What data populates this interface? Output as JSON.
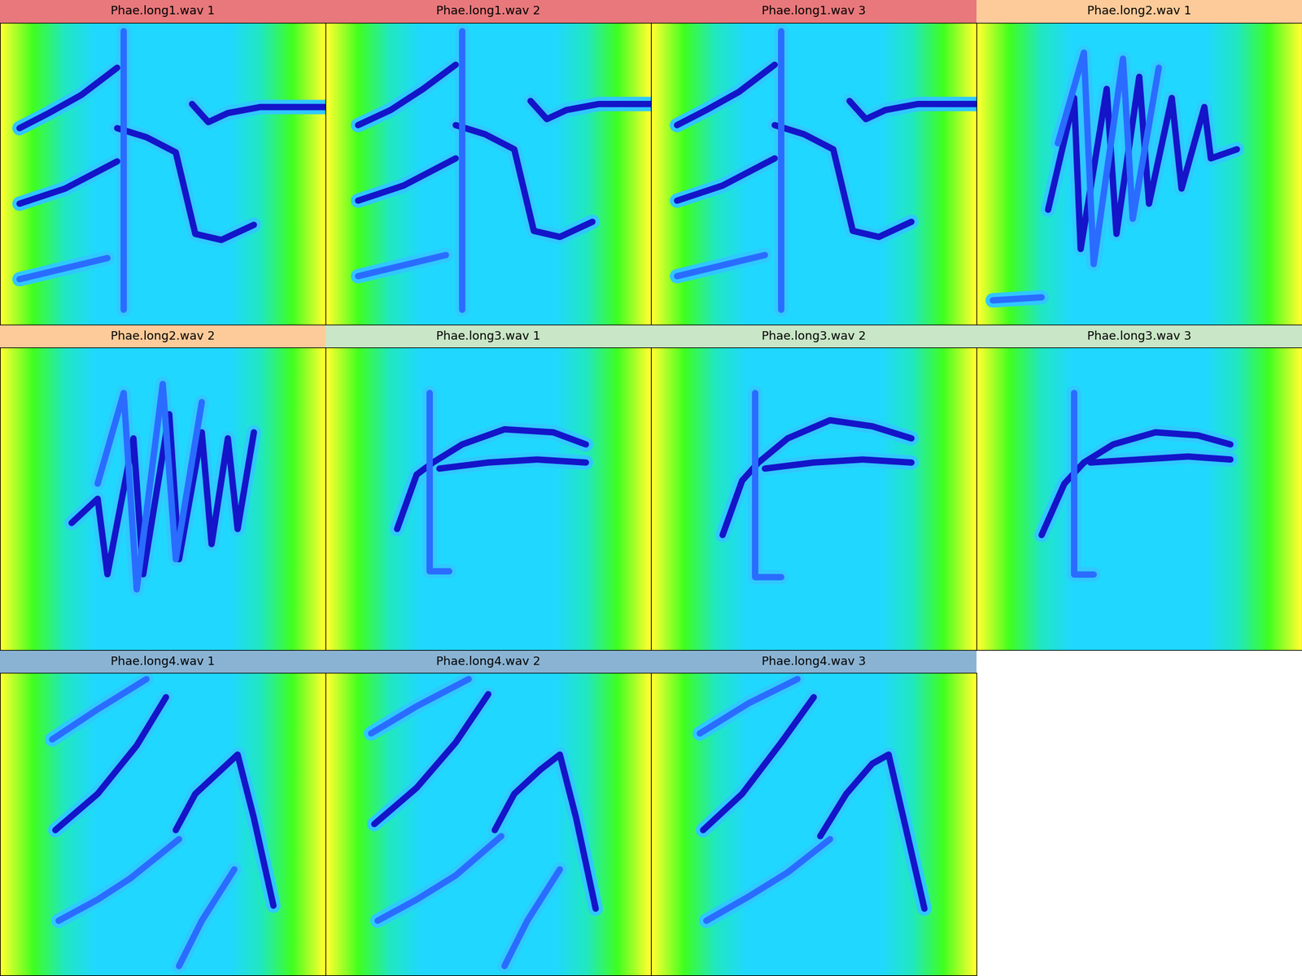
{
  "chart_data": [
    {
      "type": "line",
      "title": "Phae.long1.wav 1",
      "color": "#e8787b",
      "xlim": [
        0,
        1
      ],
      "ylim": [
        0,
        1
      ],
      "tick_labels": false,
      "series": [
        {
          "x": [
            0.06,
            0.15,
            0.25,
            0.36
          ],
          "values": [
            0.65,
            0.7,
            0.76,
            0.85
          ],
          "color": "#1414c8"
        },
        {
          "x": [
            0.06,
            0.2,
            0.36
          ],
          "values": [
            0.4,
            0.45,
            0.54
          ],
          "color": "#1414c8"
        },
        {
          "x": [
            0.06,
            0.33
          ],
          "values": [
            0.15,
            0.22
          ],
          "color": "#2a6cff"
        },
        {
          "x": [
            0.36,
            0.45,
            0.54,
            0.6,
            0.68,
            0.78
          ],
          "values": [
            0.65,
            0.62,
            0.57,
            0.3,
            0.28,
            0.33
          ],
          "color": "#1414c8"
        },
        {
          "x": [
            0.59,
            0.64,
            0.7,
            0.8,
            1.0
          ],
          "values": [
            0.73,
            0.67,
            0.7,
            0.72,
            0.72
          ],
          "color": "#1414c8"
        },
        {
          "x": [
            0.38,
            0.38
          ],
          "values": [
            0.97,
            0.05
          ],
          "color": "#2a6cff"
        }
      ]
    },
    {
      "type": "line",
      "title": "Phae.long1.wav 2",
      "color": "#e8787b",
      "xlim": [
        0,
        1
      ],
      "ylim": [
        0,
        1
      ],
      "tick_labels": false,
      "series": [
        {
          "x": [
            0.1,
            0.2,
            0.3,
            0.4
          ],
          "values": [
            0.66,
            0.71,
            0.78,
            0.86
          ],
          "color": "#1414c8"
        },
        {
          "x": [
            0.1,
            0.24,
            0.4
          ],
          "values": [
            0.41,
            0.46,
            0.55
          ],
          "color": "#1414c8"
        },
        {
          "x": [
            0.1,
            0.37
          ],
          "values": [
            0.16,
            0.23
          ],
          "color": "#2a6cff"
        },
        {
          "x": [
            0.4,
            0.49,
            0.58,
            0.64,
            0.72,
            0.82
          ],
          "values": [
            0.66,
            0.63,
            0.58,
            0.31,
            0.29,
            0.34
          ],
          "color": "#1414c8"
        },
        {
          "x": [
            0.63,
            0.68,
            0.74,
            0.84,
            1.0
          ],
          "values": [
            0.74,
            0.68,
            0.71,
            0.73,
            0.73
          ],
          "color": "#1414c8"
        },
        {
          "x": [
            0.42,
            0.42
          ],
          "values": [
            0.97,
            0.05
          ],
          "color": "#2a6cff"
        }
      ]
    },
    {
      "type": "line",
      "title": "Phae.long1.wav 3",
      "color": "#e8787b",
      "xlim": [
        0,
        1
      ],
      "ylim": [
        0,
        1
      ],
      "tick_labels": false,
      "series": [
        {
          "x": [
            0.08,
            0.17,
            0.27,
            0.38
          ],
          "values": [
            0.66,
            0.71,
            0.77,
            0.86
          ],
          "color": "#1414c8"
        },
        {
          "x": [
            0.08,
            0.22,
            0.38
          ],
          "values": [
            0.41,
            0.46,
            0.55
          ],
          "color": "#1414c8"
        },
        {
          "x": [
            0.08,
            0.35
          ],
          "values": [
            0.16,
            0.23
          ],
          "color": "#2a6cff"
        },
        {
          "x": [
            0.38,
            0.47,
            0.56,
            0.62,
            0.7,
            0.8
          ],
          "values": [
            0.66,
            0.63,
            0.58,
            0.31,
            0.29,
            0.34
          ],
          "color": "#1414c8"
        },
        {
          "x": [
            0.61,
            0.66,
            0.72,
            0.82,
            1.0
          ],
          "values": [
            0.74,
            0.68,
            0.71,
            0.73,
            0.73
          ],
          "color": "#1414c8"
        },
        {
          "x": [
            0.4,
            0.4
          ],
          "values": [
            0.97,
            0.05
          ],
          "color": "#2a6cff"
        }
      ]
    },
    {
      "type": "line",
      "title": "Phae.long2.wav 1",
      "color": "#fdcb9a",
      "xlim": [
        0,
        1
      ],
      "ylim": [
        0,
        1
      ],
      "tick_labels": false,
      "series": [
        {
          "x": [
            0.22,
            0.3,
            0.32,
            0.4,
            0.43,
            0.5,
            0.53,
            0.6,
            0.63,
            0.7,
            0.72,
            0.8
          ],
          "values": [
            0.38,
            0.75,
            0.25,
            0.78,
            0.3,
            0.82,
            0.4,
            0.75,
            0.45,
            0.72,
            0.55,
            0.58
          ],
          "color": "#1414c8"
        },
        {
          "x": [
            0.25,
            0.33,
            0.36,
            0.45,
            0.48,
            0.56
          ],
          "values": [
            0.6,
            0.9,
            0.2,
            0.88,
            0.35,
            0.85
          ],
          "color": "#2a6cff"
        },
        {
          "x": [
            0.05,
            0.2
          ],
          "values": [
            0.08,
            0.09
          ],
          "color": "#2a6cff"
        }
      ]
    },
    {
      "type": "line",
      "title": "Phae.long2.wav 2",
      "color": "#fdcb9a",
      "xlim": [
        0,
        1
      ],
      "ylim": [
        0,
        1
      ],
      "tick_labels": false,
      "series": [
        {
          "x": [
            0.22,
            0.3,
            0.33,
            0.41,
            0.44,
            0.52,
            0.55,
            0.62,
            0.65,
            0.7,
            0.73,
            0.78
          ],
          "values": [
            0.42,
            0.5,
            0.25,
            0.7,
            0.25,
            0.78,
            0.3,
            0.72,
            0.35,
            0.7,
            0.4,
            0.72
          ],
          "color": "#1414c8"
        },
        {
          "x": [
            0.3,
            0.38,
            0.42,
            0.5,
            0.54,
            0.62
          ],
          "values": [
            0.55,
            0.85,
            0.2,
            0.88,
            0.3,
            0.82
          ],
          "color": "#2a6cff"
        }
      ]
    },
    {
      "type": "line",
      "title": "Phae.long3.wav 1",
      "color": "#c9e6c6",
      "xlim": [
        0,
        1
      ],
      "ylim": [
        0,
        1
      ],
      "tick_labels": false,
      "series": [
        {
          "x": [
            0.22,
            0.28,
            0.33,
            0.42,
            0.55,
            0.7,
            0.8
          ],
          "values": [
            0.4,
            0.58,
            0.62,
            0.68,
            0.73,
            0.72,
            0.68
          ],
          "color": "#1414c8"
        },
        {
          "x": [
            0.35,
            0.5,
            0.65,
            0.8
          ],
          "values": [
            0.6,
            0.62,
            0.63,
            0.62
          ],
          "color": "#1414c8"
        },
        {
          "x": [
            0.32,
            0.32,
            0.38
          ],
          "values": [
            0.85,
            0.26,
            0.26
          ],
          "color": "#2a6cff"
        }
      ]
    },
    {
      "type": "line",
      "title": "Phae.long3.wav 2",
      "color": "#c9e6c6",
      "xlim": [
        0,
        1
      ],
      "ylim": [
        0,
        1
      ],
      "tick_labels": false,
      "series": [
        {
          "x": [
            0.22,
            0.28,
            0.33,
            0.42,
            0.55,
            0.68,
            0.8
          ],
          "values": [
            0.38,
            0.56,
            0.62,
            0.7,
            0.76,
            0.74,
            0.7
          ],
          "color": "#1414c8"
        },
        {
          "x": [
            0.35,
            0.5,
            0.65,
            0.8
          ],
          "values": [
            0.6,
            0.62,
            0.63,
            0.62
          ],
          "color": "#1414c8"
        },
        {
          "x": [
            0.32,
            0.32,
            0.4
          ],
          "values": [
            0.85,
            0.24,
            0.24
          ],
          "color": "#2a6cff"
        }
      ]
    },
    {
      "type": "line",
      "title": "Phae.long3.wav 3",
      "color": "#c9e6c6",
      "xlim": [
        0,
        1
      ],
      "ylim": [
        0,
        1
      ],
      "tick_labels": false,
      "series": [
        {
          "x": [
            0.2,
            0.27,
            0.33,
            0.42,
            0.55,
            0.68,
            0.78
          ],
          "values": [
            0.38,
            0.55,
            0.62,
            0.68,
            0.72,
            0.71,
            0.68
          ],
          "color": "#1414c8"
        },
        {
          "x": [
            0.35,
            0.5,
            0.65,
            0.78
          ],
          "values": [
            0.62,
            0.63,
            0.64,
            0.63
          ],
          "color": "#1414c8"
        },
        {
          "x": [
            0.3,
            0.3,
            0.36
          ],
          "values": [
            0.85,
            0.25,
            0.25
          ],
          "color": "#2a6cff"
        }
      ]
    },
    {
      "type": "line",
      "title": "Phae.long4.wav 1",
      "color": "#8ab3d3",
      "xlim": [
        0,
        1
      ],
      "ylim": [
        0,
        1
      ],
      "tick_labels": false,
      "series": [
        {
          "x": [
            0.17,
            0.3,
            0.42,
            0.51
          ],
          "values": [
            0.48,
            0.6,
            0.76,
            0.92
          ],
          "color": "#1414c8"
        },
        {
          "x": [
            0.54,
            0.6,
            0.68,
            0.73,
            0.78,
            0.84
          ],
          "values": [
            0.48,
            0.6,
            0.68,
            0.73,
            0.52,
            0.23
          ],
          "color": "#1414c8"
        },
        {
          "x": [
            0.18,
            0.3,
            0.4,
            0.55
          ],
          "values": [
            0.18,
            0.25,
            0.32,
            0.45
          ],
          "color": "#2a6cff"
        },
        {
          "x": [
            0.16,
            0.3,
            0.45
          ],
          "values": [
            0.78,
            0.88,
            0.98
          ],
          "color": "#2a6cff"
        },
        {
          "x": [
            0.55,
            0.62,
            0.72
          ],
          "values": [
            0.03,
            0.18,
            0.35
          ],
          "color": "#2a6cff"
        }
      ]
    },
    {
      "type": "line",
      "title": "Phae.long4.wav 2",
      "color": "#8ab3d3",
      "xlim": [
        0,
        1
      ],
      "ylim": [
        0,
        1
      ],
      "tick_labels": false,
      "series": [
        {
          "x": [
            0.15,
            0.28,
            0.4,
            0.5
          ],
          "values": [
            0.5,
            0.62,
            0.77,
            0.93
          ],
          "color": "#1414c8"
        },
        {
          "x": [
            0.52,
            0.58,
            0.66,
            0.72,
            0.77,
            0.83
          ],
          "values": [
            0.48,
            0.6,
            0.68,
            0.73,
            0.52,
            0.22
          ],
          "color": "#1414c8"
        },
        {
          "x": [
            0.16,
            0.28,
            0.4,
            0.54
          ],
          "values": [
            0.18,
            0.25,
            0.33,
            0.46
          ],
          "color": "#2a6cff"
        },
        {
          "x": [
            0.14,
            0.28,
            0.44
          ],
          "values": [
            0.8,
            0.89,
            0.98
          ],
          "color": "#2a6cff"
        },
        {
          "x": [
            0.55,
            0.62,
            0.72
          ],
          "values": [
            0.03,
            0.18,
            0.35
          ],
          "color": "#2a6cff"
        }
      ]
    },
    {
      "type": "line",
      "title": "Phae.long4.wav 3",
      "color": "#8ab3d3",
      "xlim": [
        0,
        1
      ],
      "ylim": [
        0,
        1
      ],
      "tick_labels": false,
      "series": [
        {
          "x": [
            0.16,
            0.28,
            0.4,
            0.5
          ],
          "values": [
            0.48,
            0.6,
            0.77,
            0.92
          ],
          "color": "#1414c8"
        },
        {
          "x": [
            0.52,
            0.6,
            0.68,
            0.73,
            0.78,
            0.84
          ],
          "values": [
            0.46,
            0.6,
            0.7,
            0.73,
            0.5,
            0.22
          ],
          "color": "#1414c8"
        },
        {
          "x": [
            0.17,
            0.3,
            0.42,
            0.55
          ],
          "values": [
            0.18,
            0.26,
            0.34,
            0.45
          ],
          "color": "#2a6cff"
        },
        {
          "x": [
            0.15,
            0.3,
            0.45
          ],
          "values": [
            0.8,
            0.9,
            0.98
          ],
          "color": "#2a6cff"
        }
      ]
    }
  ]
}
